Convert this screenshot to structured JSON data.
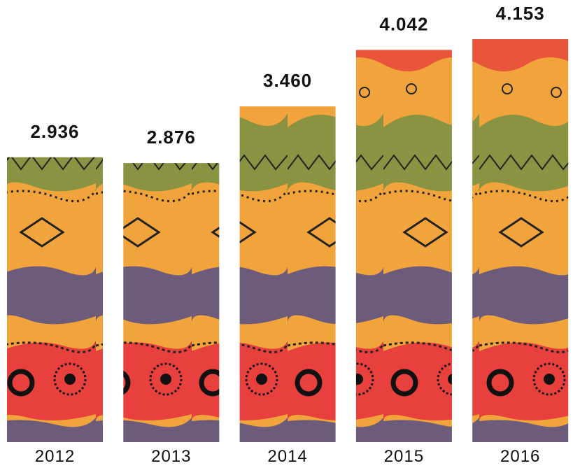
{
  "chart_data": {
    "type": "bar",
    "categories": [
      "2012",
      "2013",
      "2014",
      "2015",
      "2016"
    ],
    "values": [
      2.936,
      2.876,
      3.46,
      4.042,
      4.153
    ],
    "value_labels": [
      "2.936",
      "2.876",
      "3.460",
      "4.042",
      "4.153"
    ]
  }
}
